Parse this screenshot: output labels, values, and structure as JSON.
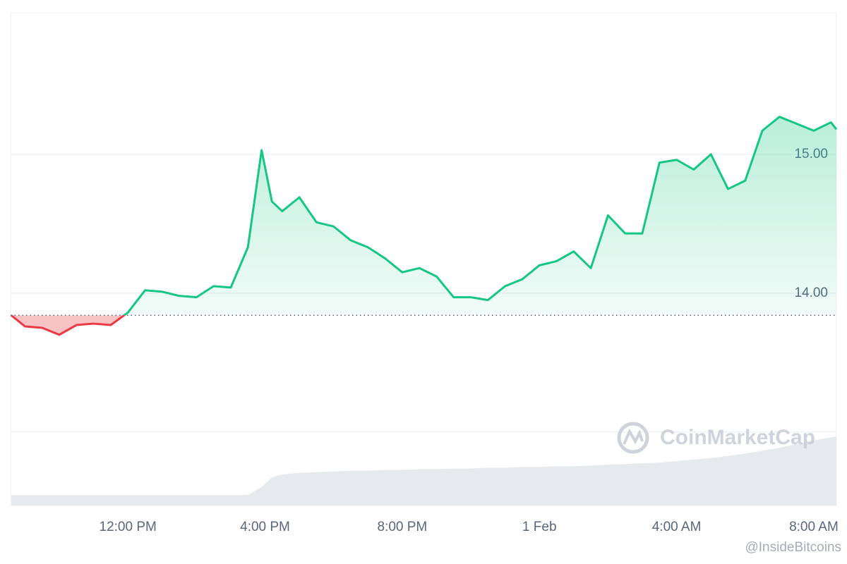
{
  "chart_data": {
    "type": "line",
    "x": [
      8.6,
      9,
      9.5,
      10,
      10.5,
      11,
      11.5,
      12,
      12.5,
      13,
      13.5,
      14,
      14.5,
      15,
      15.5,
      15.9,
      16.2,
      16.5,
      17,
      17.5,
      18,
      18.5,
      19,
      19.5,
      20,
      20.5,
      21,
      21.5,
      22,
      22.5,
      23,
      23.5,
      24,
      24.5,
      25,
      25.5,
      26,
      26.5,
      27,
      27.5,
      28,
      28.5,
      29,
      29.5,
      30,
      30.5,
      31,
      31.5,
      32,
      32.5,
      32.66
    ],
    "values": [
      13.84,
      13.76,
      13.75,
      13.7,
      13.77,
      13.78,
      13.77,
      13.86,
      14.02,
      14.01,
      13.98,
      13.97,
      14.05,
      14.04,
      14.33,
      15.03,
      14.66,
      14.59,
      14.69,
      14.51,
      14.48,
      14.38,
      14.33,
      14.25,
      14.15,
      14.18,
      14.12,
      13.97,
      13.97,
      13.95,
      14.05,
      14.1,
      14.2,
      14.23,
      14.3,
      14.18,
      14.56,
      14.43,
      14.43,
      14.94,
      14.96,
      14.89,
      15.0,
      14.75,
      14.81,
      15.17,
      15.27,
      15.22,
      15.17,
      15.23,
      15.18
    ],
    "volume": [
      14,
      14,
      14,
      14,
      14,
      14,
      14,
      14,
      14,
      14,
      14,
      14,
      14,
      14,
      14,
      25,
      38,
      42,
      44,
      45,
      46,
      47,
      47,
      48,
      48,
      49,
      49,
      50,
      50,
      51,
      51,
      52,
      52,
      53,
      53,
      54,
      55,
      56,
      57,
      58,
      60,
      62,
      64,
      67,
      70,
      74,
      78,
      83,
      88,
      92,
      93
    ],
    "volume_lim": [
      0,
      100
    ],
    "baseline": 13.84,
    "up_color": "#16c784",
    "down_color": "#ea3943",
    "volume_color": "#e6e9ee",
    "xlim": [
      8.58,
      32.66
    ],
    "xticks": [
      {
        "value": 12,
        "label": "12:00 PM"
      },
      {
        "value": 16,
        "label": "4:00 PM"
      },
      {
        "value": 20,
        "label": "8:00 PM"
      },
      {
        "value": 24,
        "label": "1 Feb"
      },
      {
        "value": 28,
        "label": "4:00 AM"
      },
      {
        "value": 32,
        "label": "8:00 AM"
      }
    ],
    "ylim": [
      12.47,
      16.02
    ],
    "yticks": [
      {
        "value": 13,
        "label": null
      },
      {
        "value": 14,
        "label": "14.00"
      },
      {
        "value": 15,
        "label": "15.00"
      }
    ],
    "grid": true,
    "watermark": "CoinMarketCap",
    "credit": "@InsideBitcoins"
  }
}
